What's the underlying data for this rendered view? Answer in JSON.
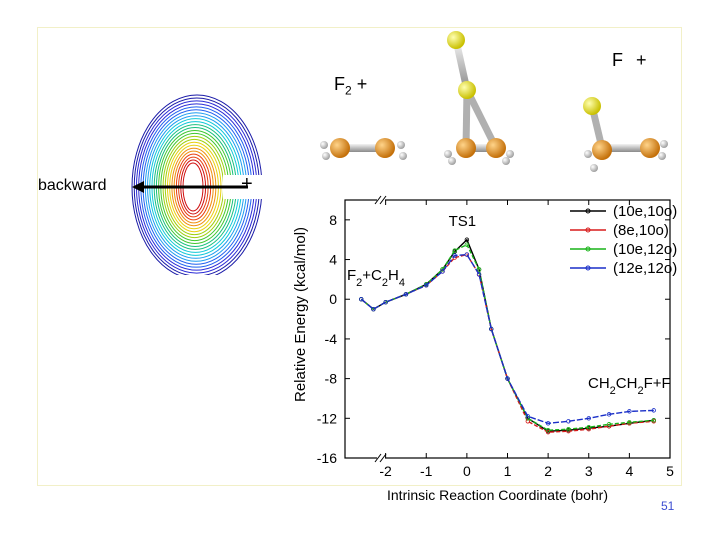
{
  "slide": {
    "f2_label": "F",
    "f2_sub": "2",
    "f2_plus": "+",
    "f_plus_label": "F +",
    "backward_label": "backward",
    "plus_mark": "+",
    "page_number": "51"
  },
  "colors": {
    "black": "#000000",
    "red": "#d81b1b",
    "green": "#18b418",
    "blue": "#1a2fc8"
  },
  "chart_data": {
    "type": "line",
    "xlabel": "Intrinsic Reaction Coordinate (bohr)",
    "ylabel": "Relative Energy (kcal/mol)",
    "xlim": [
      -3,
      5
    ],
    "ylim": [
      -16,
      10
    ],
    "xticks": [
      -2,
      -1,
      0,
      1,
      2,
      3,
      4,
      5
    ],
    "yticks": [
      8,
      4,
      0,
      -4,
      -8,
      -12,
      -16
    ],
    "annotations": {
      "ts": "TS1",
      "reactant": "F2+C2H4",
      "reactant_parts": [
        "F",
        "2",
        "+C",
        "2",
        "H",
        "4"
      ],
      "product_parts": [
        "CH",
        "2",
        "CH",
        "2",
        "F+F"
      ]
    },
    "series": [
      {
        "name": "(10e,10o)",
        "color": "#000000",
        "x": [
          -2.6,
          -2.3,
          -2.0,
          -1.5,
          -1.0,
          -0.6,
          -0.3,
          0.0,
          0.3,
          0.6,
          1.0,
          1.5,
          2.0,
          2.5,
          3.0,
          3.5,
          4.0,
          4.6
        ],
        "y": [
          0.0,
          -1.0,
          -0.3,
          0.5,
          1.5,
          3.0,
          4.8,
          6.0,
          3.0,
          -3.0,
          -8.0,
          -12.0,
          -13.3,
          -13.2,
          -13.0,
          -12.8,
          -12.5,
          -12.2
        ]
      },
      {
        "name": "(8e,10o)",
        "color": "#d81b1b",
        "x": [
          -2.6,
          -2.3,
          -2.0,
          -1.5,
          -1.0,
          -0.6,
          -0.3,
          0.0,
          0.3,
          0.6,
          1.0,
          1.5,
          2.0,
          2.5,
          3.0,
          3.5,
          4.0,
          4.6
        ],
        "y": [
          0.0,
          -1.0,
          -0.3,
          0.5,
          1.4,
          2.8,
          4.2,
          4.5,
          2.5,
          -3.0,
          -8.0,
          -12.3,
          -13.4,
          -13.3,
          -13.1,
          -12.8,
          -12.5,
          -12.3
        ]
      },
      {
        "name": "(10e,12o)",
        "color": "#18b418",
        "x": [
          -2.6,
          -2.3,
          -2.0,
          -1.5,
          -1.0,
          -0.6,
          -0.3,
          0.0,
          0.3,
          0.6,
          1.0,
          1.5,
          2.0,
          2.5,
          3.0,
          3.5,
          4.0,
          4.6
        ],
        "y": [
          0.0,
          -1.0,
          -0.3,
          0.5,
          1.5,
          3.0,
          4.9,
          5.5,
          3.0,
          -3.0,
          -8.0,
          -12.0,
          -13.2,
          -13.1,
          -12.9,
          -12.6,
          -12.4,
          -12.2
        ]
      },
      {
        "name": "(12e,12o)",
        "color": "#1a2fc8",
        "x": [
          -2.6,
          -2.3,
          -2.0,
          -1.5,
          -1.0,
          -0.6,
          -0.3,
          0.0,
          0.3,
          0.6,
          1.0,
          1.5,
          2.0,
          2.5,
          3.0,
          3.5,
          4.0,
          4.6
        ],
        "y": [
          0.0,
          -1.0,
          -0.3,
          0.5,
          1.4,
          2.8,
          4.4,
          4.5,
          2.5,
          -3.0,
          -8.0,
          -11.8,
          -12.5,
          -12.3,
          -12.0,
          -11.6,
          -11.3,
          -11.2
        ]
      }
    ]
  }
}
